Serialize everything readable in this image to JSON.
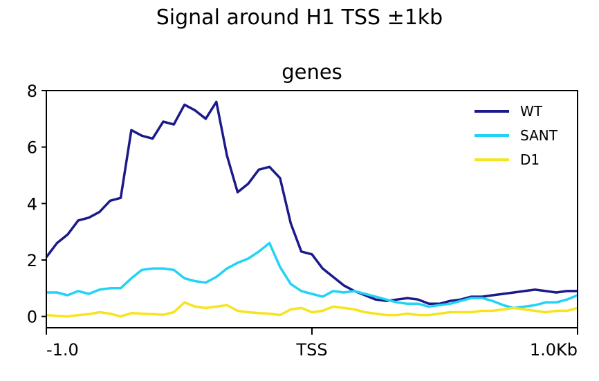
{
  "suptitle": "Signal around H1 TSS ±1kb",
  "chart_data": {
    "type": "line",
    "title": "genes",
    "xlabel": "",
    "ylabel": "",
    "xlim": [
      0,
      100
    ],
    "ylim": [
      -0.4,
      8
    ],
    "xticks": [
      {
        "value": 0,
        "label": "-1.0"
      },
      {
        "value": 50,
        "label": "TSS"
      },
      {
        "value": 100,
        "label": "1.0Kb"
      }
    ],
    "yticks": [
      0,
      2,
      4,
      6,
      8
    ],
    "grid": false,
    "legend": "top-right",
    "x": [
      0,
      2,
      4,
      6,
      8,
      10,
      12,
      14,
      16,
      18,
      20,
      22,
      24,
      26,
      28,
      30,
      32,
      34,
      36,
      38,
      40,
      42,
      44,
      46,
      48,
      50,
      52,
      54,
      56,
      58,
      60,
      62,
      64,
      66,
      68,
      70,
      72,
      74,
      76,
      78,
      80,
      82,
      84,
      86,
      88,
      90,
      92,
      94,
      96,
      98,
      100
    ],
    "series": [
      {
        "name": "WT",
        "color": "#1b1a8a",
        "values": [
          2.1,
          2.6,
          2.9,
          3.4,
          3.5,
          3.7,
          4.1,
          4.2,
          6.6,
          6.4,
          6.3,
          6.9,
          6.8,
          7.5,
          7.3,
          7.0,
          7.6,
          5.7,
          4.4,
          4.7,
          5.2,
          5.3,
          4.9,
          3.3,
          2.3,
          2.2,
          1.7,
          1.4,
          1.1,
          0.9,
          0.75,
          0.6,
          0.55,
          0.6,
          0.65,
          0.6,
          0.45,
          0.45,
          0.55,
          0.6,
          0.7,
          0.7,
          0.75,
          0.8,
          0.85,
          0.9,
          0.95,
          0.9,
          0.85,
          0.9,
          0.9
        ]
      },
      {
        "name": "SANT",
        "color": "#22d3f5",
        "values": [
          0.85,
          0.85,
          0.75,
          0.9,
          0.8,
          0.95,
          1.0,
          1.0,
          1.35,
          1.65,
          1.7,
          1.7,
          1.65,
          1.35,
          1.25,
          1.2,
          1.4,
          1.7,
          1.9,
          2.05,
          2.3,
          2.6,
          1.75,
          1.15,
          0.9,
          0.8,
          0.7,
          0.9,
          0.85,
          0.9,
          0.8,
          0.7,
          0.6,
          0.5,
          0.45,
          0.45,
          0.35,
          0.4,
          0.45,
          0.55,
          0.65,
          0.65,
          0.55,
          0.4,
          0.3,
          0.35,
          0.4,
          0.5,
          0.5,
          0.6,
          0.75
        ]
      },
      {
        "name": "D1",
        "color": "#f7e41c",
        "values": [
          0.05,
          0.02,
          0.0,
          0.05,
          0.08,
          0.15,
          0.1,
          0.0,
          0.12,
          0.1,
          0.08,
          0.06,
          0.15,
          0.5,
          0.35,
          0.3,
          0.35,
          0.4,
          0.2,
          0.15,
          0.12,
          0.1,
          0.05,
          0.25,
          0.3,
          0.15,
          0.2,
          0.35,
          0.3,
          0.25,
          0.15,
          0.1,
          0.05,
          0.05,
          0.1,
          0.05,
          0.05,
          0.1,
          0.15,
          0.15,
          0.15,
          0.2,
          0.2,
          0.25,
          0.3,
          0.25,
          0.2,
          0.15,
          0.2,
          0.2,
          0.3
        ]
      }
    ]
  }
}
